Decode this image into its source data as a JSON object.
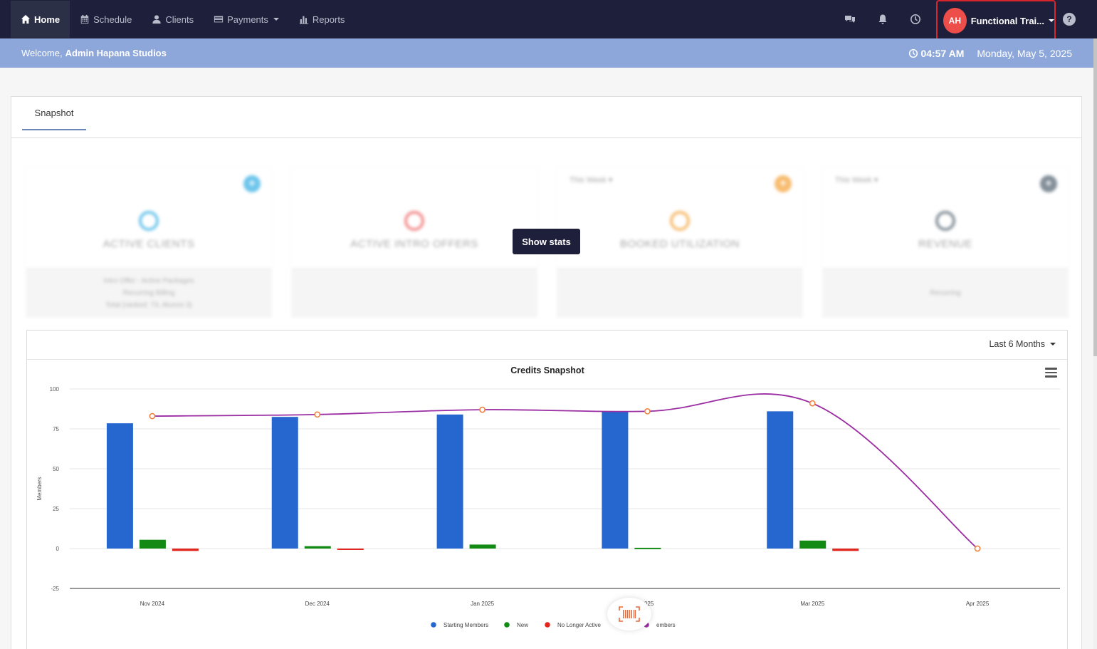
{
  "nav": {
    "items": [
      {
        "label": "Home",
        "icon": "home-icon",
        "active": true
      },
      {
        "label": "Schedule",
        "icon": "calendar-icon"
      },
      {
        "label": "Clients",
        "icon": "user-icon"
      },
      {
        "label": "Payments",
        "icon": "card-icon",
        "dropdown": true
      },
      {
        "label": "Reports",
        "icon": "bar-chart-icon"
      }
    ],
    "profile": {
      "initials": "AH",
      "name": "Functional Trai...",
      "avatar_color": "#ee4e4a"
    },
    "help_label": "?"
  },
  "welcome": {
    "prefix": "Welcome,",
    "name": "Admin Hapana Studios",
    "time": "04:57 AM",
    "date": "Monday, May 5, 2025"
  },
  "tabs": [
    {
      "label": "Snapshot",
      "active": true
    }
  ],
  "cards": [
    {
      "title": "ACTIVE CLIENTS",
      "period": "",
      "accent": "#3fb3e6",
      "lines": [
        "Intro Offer - Active Packages",
        "Recurring Billing",
        "Total (ranked: 73, Alumni 3)"
      ]
    },
    {
      "title": "ACTIVE INTRO OFFERS",
      "period": "",
      "accent": "#f06a6a",
      "lines": []
    },
    {
      "title": "BOOKED UTILIZATION",
      "period": "This Week",
      "accent": "#f5a742",
      "lines": []
    },
    {
      "title": "REVENUE",
      "period": "This Week",
      "accent": "#5b6b78",
      "lines": [
        "Recurring"
      ]
    }
  ],
  "show_stats_label": "Show stats",
  "range_select": "Last 6 Months",
  "chart_data": {
    "type": "bar",
    "title": "Credits Snapshot",
    "ylabel": "Members",
    "xlabel": "",
    "ylim": [
      -25,
      100
    ],
    "yticks": [
      100,
      75,
      50,
      25,
      0,
      -25
    ],
    "categories": [
      "Nov 2024",
      "Dec 2024",
      "Jan 2025",
      "Feb 2025",
      "Mar 2025",
      "Apr 2025"
    ],
    "category_labels": [
      "Nov 2024",
      "Dec 2024",
      "Jan 2025",
      "2025",
      "Mar 2025",
      "Apr 2025"
    ],
    "series": [
      {
        "name": "Starting Members",
        "type": "bar",
        "color": "#2666cf",
        "values": [
          78.5,
          82.5,
          84,
          86,
          86,
          0
        ]
      },
      {
        "name": "New",
        "type": "bar",
        "color": "#138a13",
        "values": [
          5.5,
          1.5,
          2.5,
          0.5,
          5,
          0
        ]
      },
      {
        "name": "No Longer Active",
        "type": "bar",
        "color": "#e0261e",
        "values": [
          -1.5,
          -0.5,
          0,
          0,
          -1.5,
          0
        ]
      },
      {
        "name": "Members",
        "type": "line",
        "color": "#9b2ea3",
        "marker_color": "#ef7c38",
        "values": [
          83,
          84,
          87,
          86,
          91,
          0
        ]
      }
    ],
    "legend_labels": [
      "Starting Members",
      "New",
      "No Longer Active",
      "embers"
    ],
    "legend_position": "bottom-center",
    "grid": true
  }
}
